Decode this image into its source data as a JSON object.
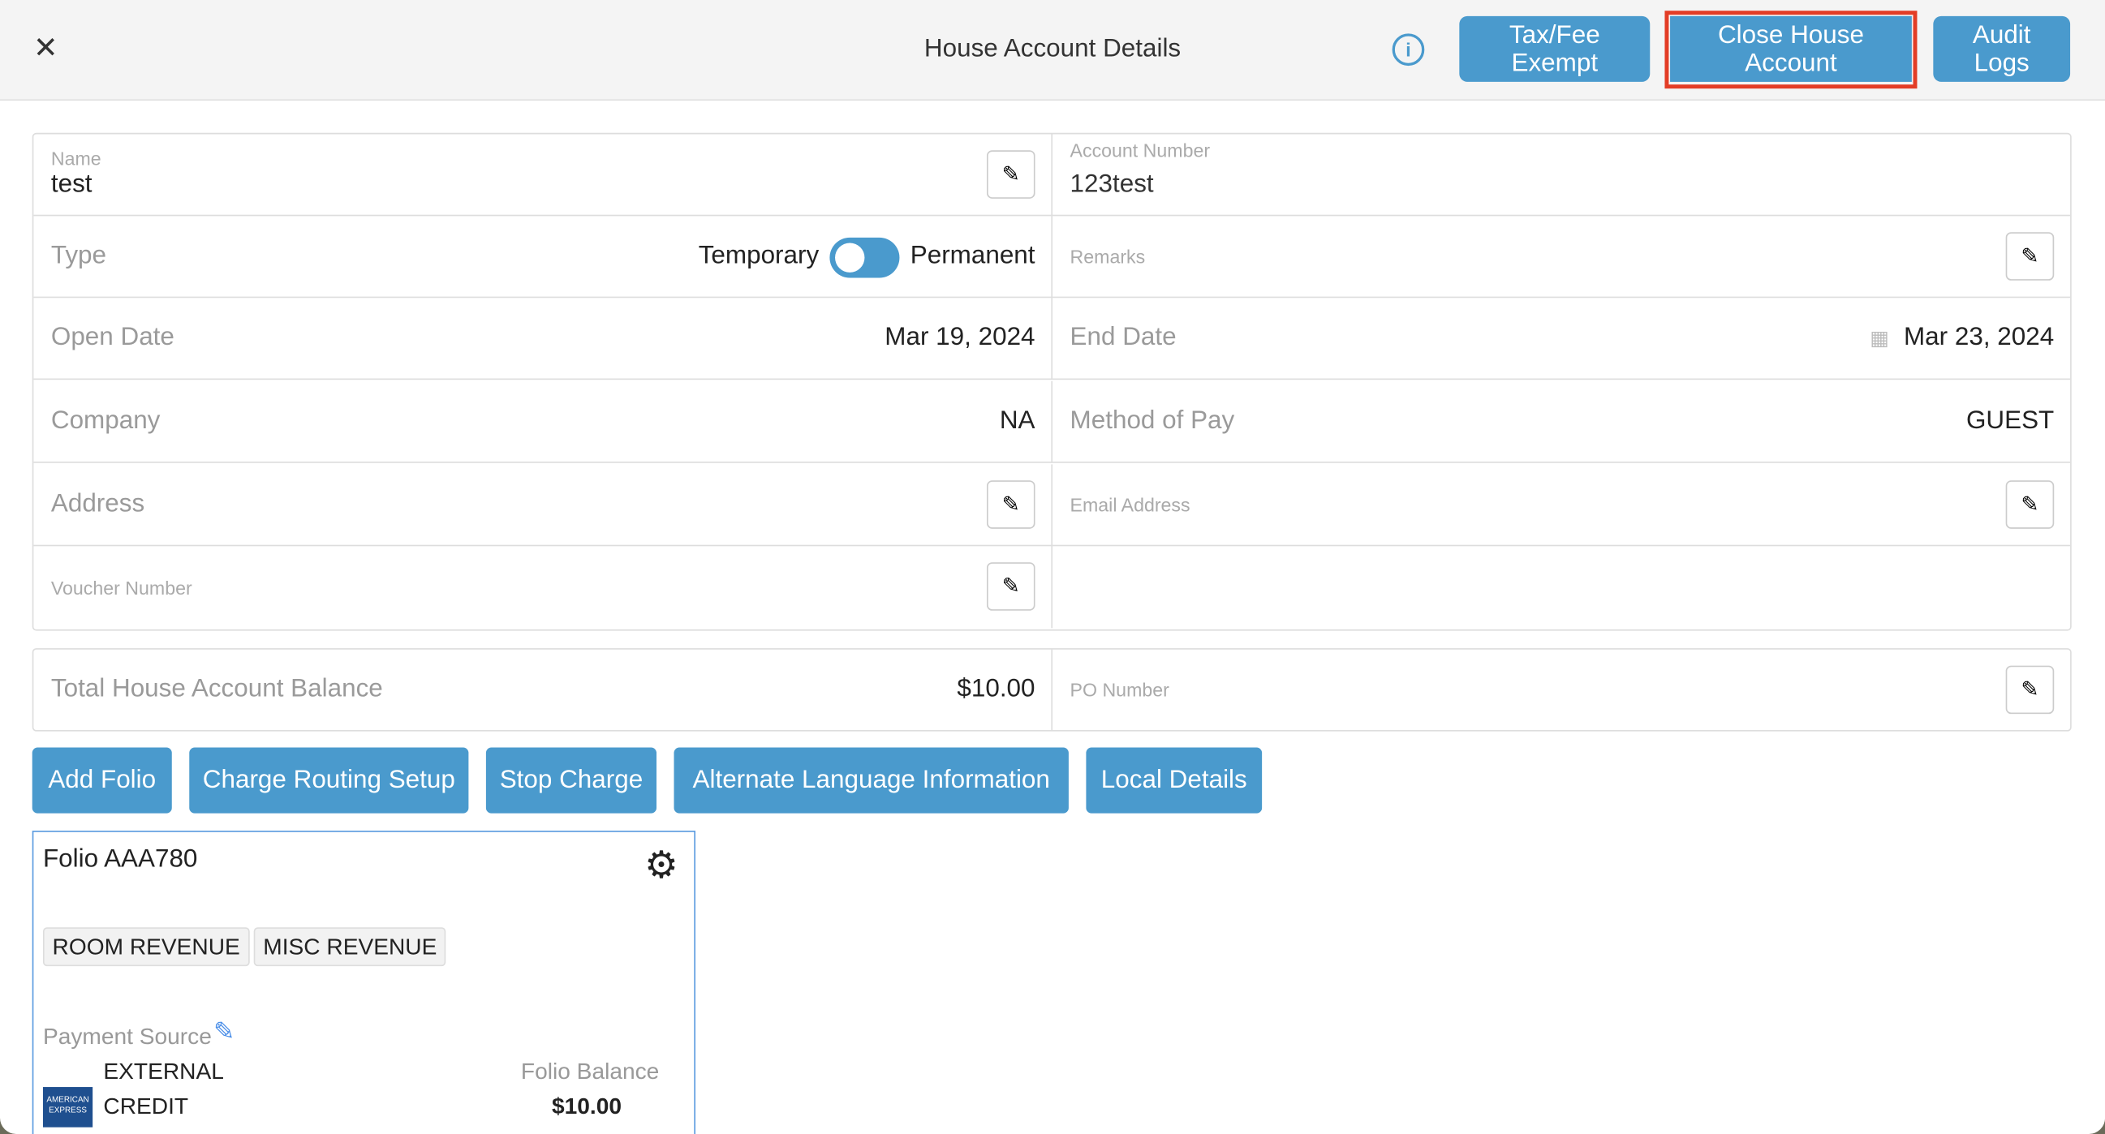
{
  "header": {
    "title": "House Account Details",
    "buttons": {
      "tax_fee_exempt": "Tax/Fee Exempt",
      "close_house_account": "Close House Account",
      "audit_logs": "Audit Logs"
    },
    "highlight_color": "#e33d26"
  },
  "fields": {
    "name": {
      "label": "Name",
      "value": "test"
    },
    "account_number": {
      "label": "Account Number",
      "value": "123test"
    },
    "type": {
      "label": "Type",
      "option_left": "Temporary",
      "option_right": "Permanent",
      "toggle_on": true
    },
    "remarks": {
      "label": "Remarks"
    },
    "open_date": {
      "label": "Open Date",
      "value": "Mar 19, 2024"
    },
    "end_date": {
      "label": "End Date",
      "value": "Mar 23, 2024"
    },
    "company": {
      "label": "Company",
      "value": "NA"
    },
    "method_of_pay": {
      "label": "Method of Pay",
      "value": "GUEST"
    },
    "address": {
      "label": "Address"
    },
    "email": {
      "label": "Email Address"
    },
    "voucher": {
      "label": "Voucher Number"
    },
    "balance": {
      "label": "Total House Account Balance",
      "value": "$10.00"
    },
    "po_number": {
      "label": "PO Number"
    }
  },
  "actions": [
    "Add Folio",
    "Charge Routing Setup",
    "Stop Charge",
    "Alternate Language Information",
    "Local Details"
  ],
  "folio": {
    "title": "Folio AAA780",
    "tags": [
      "ROOM REVENUE",
      "MISC REVENUE"
    ],
    "payment_source_label": "Payment Source",
    "payment_type": "EXTERNAL",
    "payment_method": "CREDIT",
    "card_brand": "AMERICAN EXPRESS",
    "balance_label": "Folio Balance",
    "balance": "$10.00"
  },
  "accent_color": "#4a9acd"
}
